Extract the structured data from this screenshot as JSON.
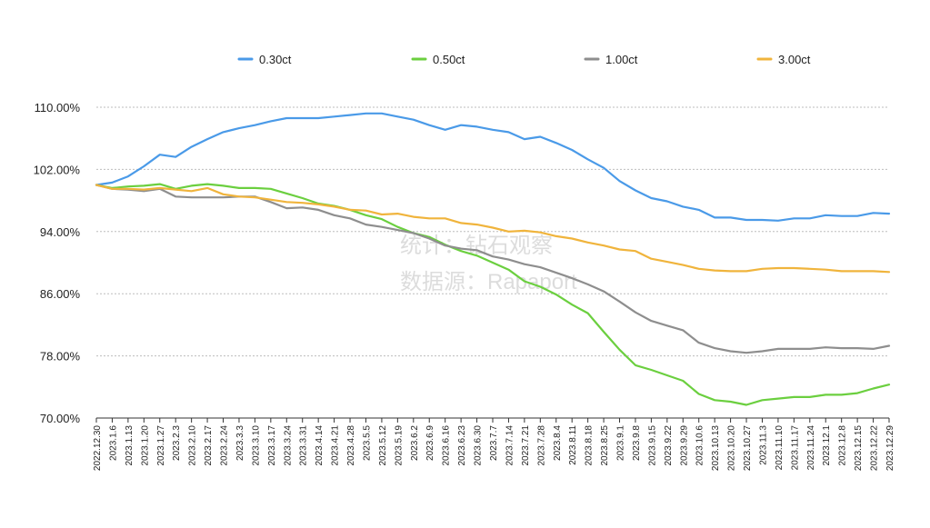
{
  "watermark": {
    "line1": "统计：钻石观察",
    "line2": "数据源：Rapaport"
  },
  "chart_data": {
    "type": "line",
    "ylim": [
      70,
      110
    ],
    "yticks": [
      70,
      78,
      86,
      94,
      102,
      110
    ],
    "ytick_labels": [
      "70.00%",
      "78.00%",
      "86.00%",
      "94.00%",
      "102.00%",
      "110.00%"
    ],
    "x_labels": [
      "2022.12.30",
      "2023.1.6",
      "2023.1.13",
      "2023.1.20",
      "2023.1.27",
      "2023.2.3",
      "2023.2.10",
      "2023.2.17",
      "2023.2.24",
      "2023.3.3",
      "2023.3.10",
      "2023.3.17",
      "2023.3.24",
      "2023.3.31",
      "2023.4.14",
      "2023.4.21",
      "2023.4.28",
      "2023.5.5",
      "2023.5.12",
      "2023.5.19",
      "2023.6.2",
      "2023.6.9",
      "2023.6.16",
      "2023.6.23",
      "2023.6.30",
      "2023.7.7",
      "2023.7.14",
      "2023.7.21",
      "2023.7.28",
      "2023.8.4",
      "2023.8.11",
      "2023.8.18",
      "2023.8.25",
      "2023.9.1",
      "2023.9.8",
      "2023.9.15",
      "2023.9.22",
      "2023.9.29",
      "2023.10.6",
      "2023.10.13",
      "2023.10.20",
      "2023.10.27",
      "2023.11.3",
      "2023.11.10",
      "2023.11.17",
      "2023.11.24",
      "2023.12.1",
      "2023.12.8",
      "2023.12.15",
      "2023.12.22",
      "2023.12.29"
    ],
    "grid": true,
    "legend_position": "top",
    "series": [
      {
        "name": "0.30ct",
        "color": "#4a9ae8",
        "values": [
          100,
          100.3,
          101.1,
          102.4,
          103.9,
          103.6,
          104.9,
          105.9,
          106.8,
          107.3,
          107.7,
          108.2,
          108.6,
          108.6,
          108.6,
          108.8,
          109.0,
          109.2,
          109.2,
          108.8,
          108.4,
          107.7,
          107.1,
          107.7,
          107.5,
          107.1,
          106.8,
          105.9,
          106.2,
          105.4,
          104.5,
          103.3,
          102.2,
          100.5,
          99.3,
          98.3,
          97.9,
          97.2,
          96.8,
          95.8,
          95.8,
          95.5,
          95.5,
          95.4,
          95.7,
          95.7,
          96.1,
          96.0,
          96.0,
          96.4,
          96.3
        ]
      },
      {
        "name": "0.50ct",
        "color": "#6bcf3f",
        "values": [
          100,
          99.6,
          99.8,
          99.9,
          100.1,
          99.5,
          99.9,
          100.1,
          99.9,
          99.6,
          99.6,
          99.5,
          98.9,
          98.3,
          97.6,
          97.3,
          96.8,
          96.1,
          95.6,
          94.6,
          93.8,
          93.3,
          92.3,
          91.5,
          90.9,
          90.0,
          89.1,
          87.6,
          86.9,
          85.9,
          84.6,
          83.5,
          81.1,
          78.8,
          76.8,
          76.2,
          75.5,
          74.8,
          73.1,
          72.3,
          72.1,
          71.7,
          72.3,
          72.5,
          72.7,
          72.7,
          73.0,
          73.0,
          73.2,
          73.8,
          74.3
        ]
      },
      {
        "name": "1.00ct",
        "color": "#8e8e8e",
        "values": [
          100,
          99.5,
          99.4,
          99.2,
          99.5,
          98.5,
          98.4,
          98.4,
          98.4,
          98.5,
          98.5,
          97.8,
          97.0,
          97.1,
          96.8,
          96.1,
          95.7,
          94.9,
          94.6,
          94.2,
          93.8,
          93.1,
          92.2,
          91.8,
          91.6,
          90.8,
          90.4,
          89.8,
          89.4,
          88.7,
          88.0,
          87.2,
          86.3,
          85.0,
          83.6,
          82.5,
          81.9,
          81.3,
          79.7,
          79.0,
          78.6,
          78.4,
          78.6,
          78.9,
          78.9,
          78.9,
          79.1,
          79.0,
          79.0,
          78.9,
          79.3
        ]
      },
      {
        "name": "3.00ct",
        "color": "#f0b43c",
        "values": [
          100,
          99.5,
          99.5,
          99.4,
          99.6,
          99.4,
          99.2,
          99.6,
          98.8,
          98.5,
          98.4,
          98.1,
          97.8,
          97.7,
          97.5,
          97.2,
          96.8,
          96.7,
          96.2,
          96.3,
          95.9,
          95.7,
          95.7,
          95.1,
          94.9,
          94.5,
          94.0,
          94.1,
          93.9,
          93.4,
          93.1,
          92.6,
          92.2,
          91.7,
          91.5,
          90.5,
          90.1,
          89.7,
          89.2,
          89.0,
          88.9,
          88.9,
          89.2,
          89.3,
          89.3,
          89.2,
          89.1,
          88.9,
          88.9,
          88.9,
          88.8
        ]
      }
    ]
  }
}
